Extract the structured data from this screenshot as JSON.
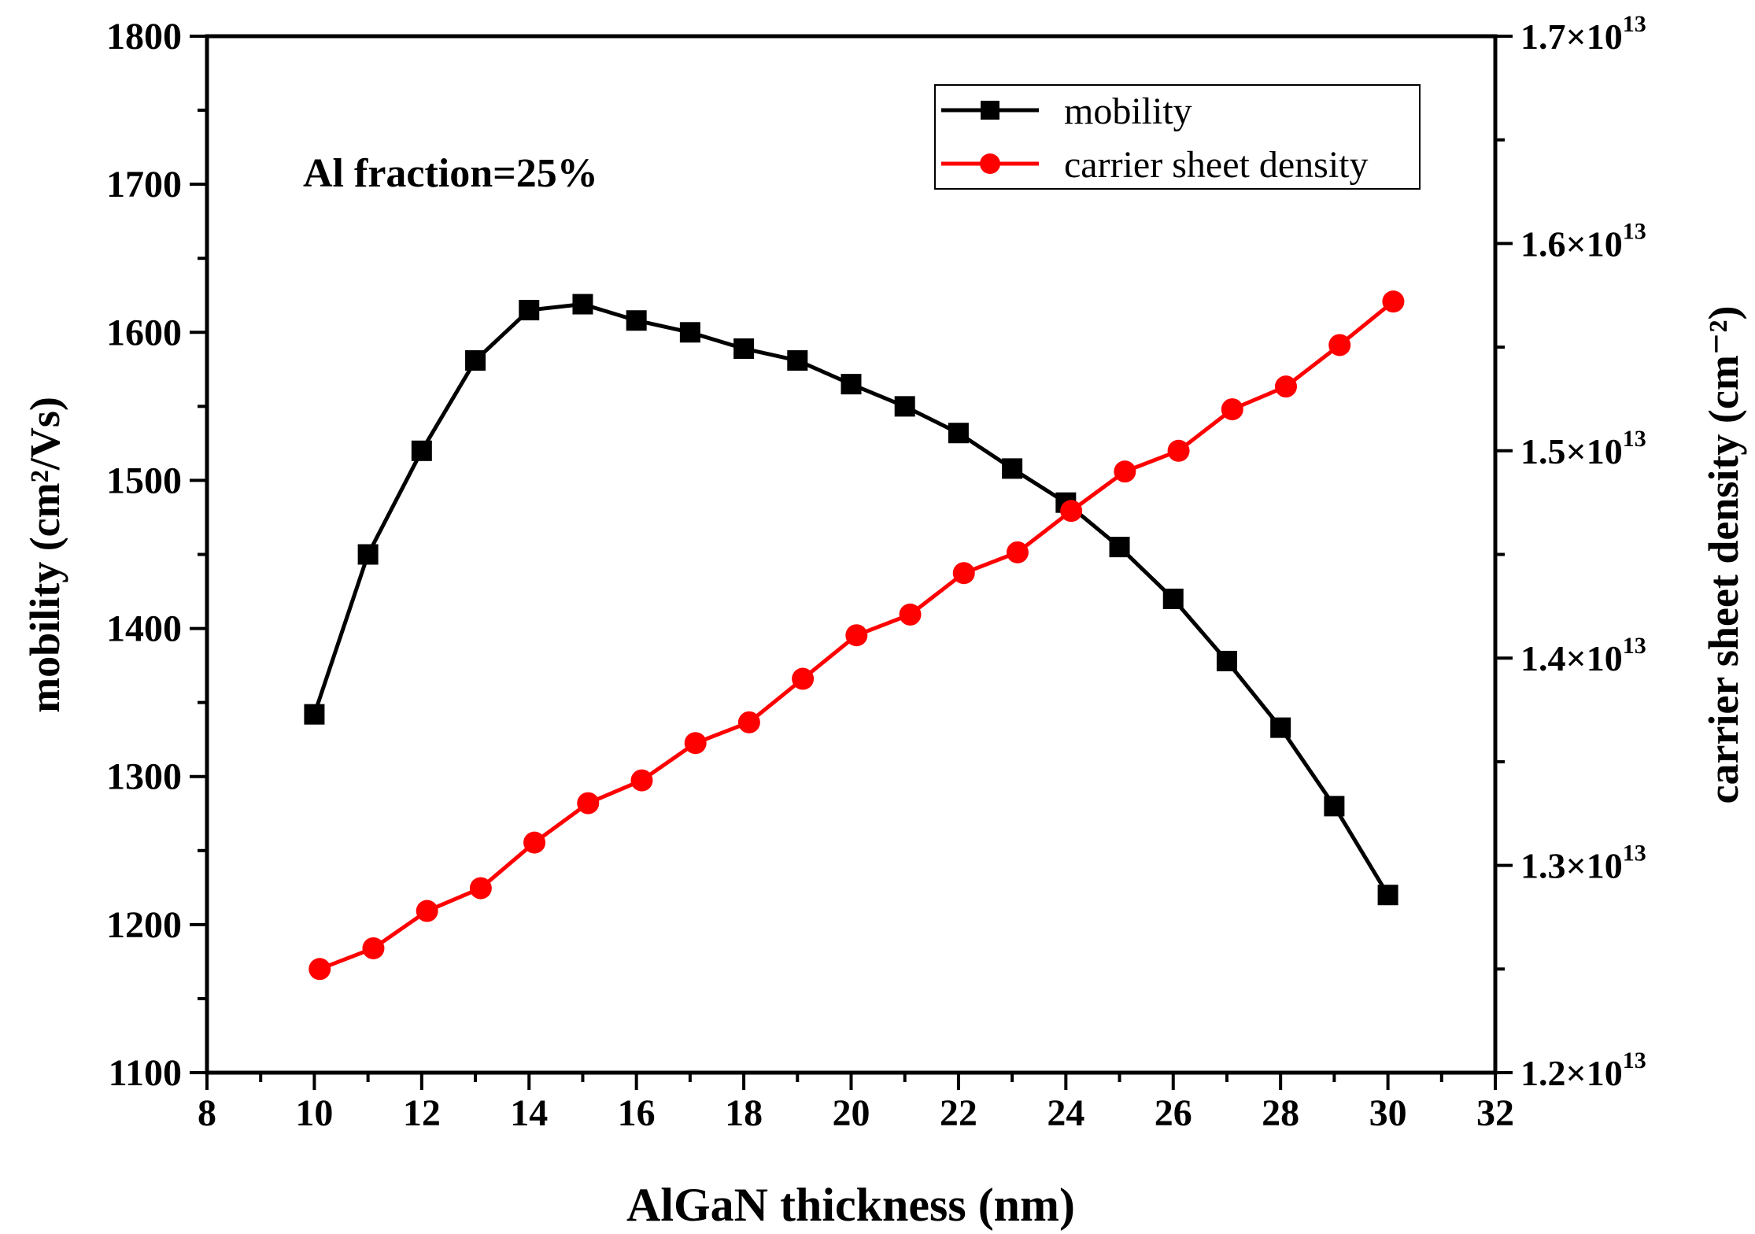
{
  "chart_data": {
    "type": "line",
    "title": "",
    "annotation": "Al fraction=25%",
    "xlabel": "AlGaN thickness (nm)",
    "ylabel_left": "mobility (cm²/Vs)",
    "ylabel_right": "carrier sheet density (cm⁻²)",
    "xlim": [
      8,
      32
    ],
    "xticks": [
      8,
      10,
      12,
      14,
      16,
      18,
      20,
      22,
      24,
      26,
      28,
      30,
      32
    ],
    "ylim_left": [
      1100,
      1800
    ],
    "yticks_left": [
      1100,
      1200,
      1300,
      1400,
      1500,
      1600,
      1700,
      1800
    ],
    "ylim_right": [
      12000000000000.0,
      17000000000000.0
    ],
    "yticks_right": [
      12000000000000.0,
      13000000000000.0,
      14000000000000.0,
      15000000000000.0,
      16000000000000.0,
      17000000000000.0
    ],
    "yticks_right_labels": [
      "1.2×10",
      "1.3×10",
      "1.4×10",
      "1.5×10",
      "1.6×10",
      "1.7×10"
    ],
    "yticks_right_exponent": "13",
    "legend_position": "top-right",
    "series": [
      {
        "name": "mobility",
        "axis": "left",
        "marker": "square",
        "color": "#000000",
        "x": [
          10,
          11,
          12,
          13,
          14,
          15,
          16,
          17,
          18,
          19,
          20,
          21,
          22,
          23,
          24,
          25,
          26,
          27,
          28,
          29,
          30
        ],
        "values": [
          1342,
          1450,
          1520,
          1581,
          1615,
          1619,
          1608,
          1600,
          1589,
          1581,
          1565,
          1550,
          1532,
          1508,
          1485,
          1455,
          1420,
          1378,
          1333,
          1280,
          1220
        ]
      },
      {
        "name": "carrier sheet density",
        "axis": "right",
        "marker": "circle",
        "color": "#ff0000",
        "x": [
          10.1,
          11.1,
          12.1,
          13.1,
          14.1,
          15.1,
          16.1,
          17.1,
          18.1,
          19.1,
          20.1,
          21.1,
          22.1,
          23.1,
          24.1,
          25.1,
          26.1,
          27.1,
          28.1,
          29.1,
          30.1
        ],
        "values": [
          12500000000000.0,
          12600000000000.0,
          12780000000000.0,
          12890000000000.0,
          13110000000000.0,
          13300000000000.0,
          13410000000000.0,
          13590000000000.0,
          13690000000000.0,
          13900000000000.0,
          14110000000000.0,
          14210000000000.0,
          14410000000000.0,
          14510000000000.0,
          14710000000000.0,
          14900000000000.0,
          15000000000000.0,
          15200000000000.0,
          15310000000000.0,
          15510000000000.0,
          15720000000000.0
        ]
      }
    ]
  }
}
